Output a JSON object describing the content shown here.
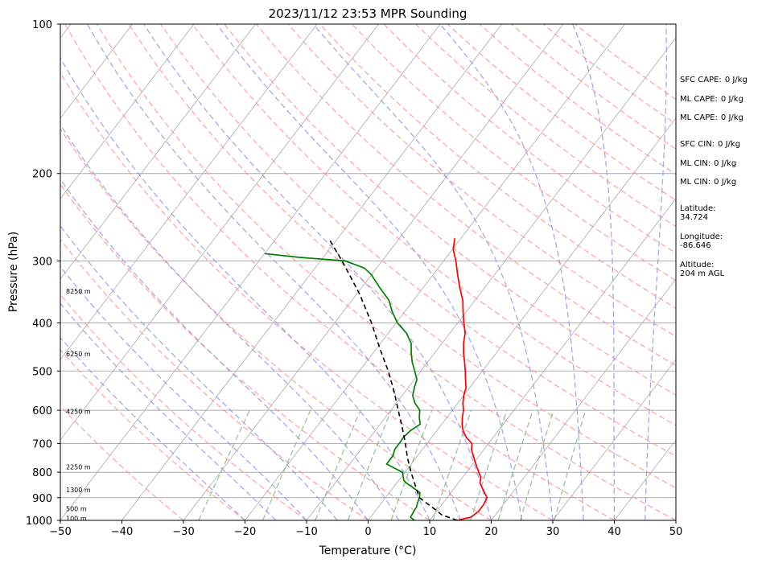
{
  "chart_data": {
    "type": "line",
    "title": "2023/11/12 23:53 MPR Sounding",
    "xlabel": "Temperature (°C)",
    "ylabel": "Pressure (hPa)",
    "xlim": [
      -50,
      50
    ],
    "ylim": [
      1000,
      100
    ],
    "y_scale": "log",
    "skew": "skew-T",
    "grid": true,
    "x_ticks": [
      -50,
      -40,
      -30,
      -20,
      -10,
      0,
      10,
      20,
      30,
      40,
      50
    ],
    "y_ticks": [
      1000,
      900,
      800,
      700,
      600,
      500,
      400,
      300,
      200,
      100
    ],
    "colors": {
      "temperature": "#ff0000",
      "dewpoint": "#008000",
      "parcel": "#000000",
      "dry_adiabats": "#ff9999",
      "moist_adiabats": "#9999ee",
      "mixing_ratio": "#88bb88",
      "isotherms": "#aaaaaa"
    },
    "series": [
      {
        "key": "temperature",
        "points": [
          [
            1000,
            14.5
          ],
          [
            985,
            16.3
          ],
          [
            960,
            16.8
          ],
          [
            930,
            16.8
          ],
          [
            900,
            16.5
          ],
          [
            880,
            15.5
          ],
          [
            860,
            14.5
          ],
          [
            840,
            13.5
          ],
          [
            820,
            13.0
          ],
          [
            800,
            12.0
          ],
          [
            780,
            11.0
          ],
          [
            760,
            10.0
          ],
          [
            740,
            9.0
          ],
          [
            720,
            8.0
          ],
          [
            700,
            7.3
          ],
          [
            680,
            5.6
          ],
          [
            660,
            4.3
          ],
          [
            640,
            3.3
          ],
          [
            620,
            2.5
          ],
          [
            600,
            1.8
          ],
          [
            580,
            0.8
          ],
          [
            560,
            0.0
          ],
          [
            540,
            -0.6
          ],
          [
            520,
            -1.7
          ],
          [
            500,
            -2.8
          ],
          [
            480,
            -4.0
          ],
          [
            460,
            -5.3
          ],
          [
            440,
            -6.5
          ],
          [
            420,
            -7.5
          ],
          [
            400,
            -9.0
          ],
          [
            380,
            -10.5
          ],
          [
            360,
            -12.0
          ],
          [
            340,
            -14.0
          ],
          [
            320,
            -16.0
          ],
          [
            300,
            -18.0
          ],
          [
            285,
            -19.8
          ],
          [
            270,
            -21.0
          ]
        ]
      },
      {
        "key": "dewpoint",
        "points": [
          [
            1000,
            7.5
          ],
          [
            985,
            6.5
          ],
          [
            960,
            6.3
          ],
          [
            940,
            6.2
          ],
          [
            920,
            5.8
          ],
          [
            900,
            5.5
          ],
          [
            880,
            5.0
          ],
          [
            860,
            3.3
          ],
          [
            840,
            1.5
          ],
          [
            830,
            0.8
          ],
          [
            800,
            -0.4
          ],
          [
            770,
            -4.0
          ],
          [
            740,
            -4.0
          ],
          [
            720,
            -4.5
          ],
          [
            700,
            -4.5
          ],
          [
            680,
            -4.6
          ],
          [
            660,
            -4.3
          ],
          [
            640,
            -3.5
          ],
          [
            620,
            -4.5
          ],
          [
            600,
            -5.3
          ],
          [
            580,
            -7.0
          ],
          [
            560,
            -8.3
          ],
          [
            540,
            -9.0
          ],
          [
            520,
            -9.6
          ],
          [
            500,
            -11.0
          ],
          [
            480,
            -12.5
          ],
          [
            460,
            -13.8
          ],
          [
            440,
            -15.0
          ],
          [
            420,
            -17.0
          ],
          [
            400,
            -19.8
          ],
          [
            380,
            -22.0
          ],
          [
            360,
            -24.0
          ],
          [
            340,
            -27.0
          ],
          [
            320,
            -30.0
          ],
          [
            310,
            -32.0
          ],
          [
            300,
            -36.0
          ],
          [
            295,
            -44.0
          ],
          [
            290,
            -50.0
          ]
        ]
      },
      {
        "key": "parcel",
        "points": [
          [
            1000,
            14.5
          ],
          [
            975,
            11.3
          ],
          [
            950,
            9.5
          ],
          [
            925,
            7.5
          ],
          [
            900,
            5.5
          ],
          [
            850,
            3.3
          ],
          [
            800,
            1.0
          ],
          [
            750,
            -1.3
          ],
          [
            700,
            -3.5
          ],
          [
            650,
            -6.0
          ],
          [
            600,
            -8.8
          ],
          [
            550,
            -11.8
          ],
          [
            500,
            -15.3
          ],
          [
            450,
            -19.5
          ],
          [
            400,
            -24.0
          ],
          [
            350,
            -29.5
          ],
          [
            300,
            -36.5
          ],
          [
            270,
            -41.5
          ]
        ]
      }
    ],
    "height_labels": [
      {
        "text": "100 m",
        "p": 990
      },
      {
        "text": "500 m",
        "p": 948
      },
      {
        "text": "1300 m",
        "p": 868
      },
      {
        "text": "2250 m",
        "p": 780
      },
      {
        "text": "4250 m",
        "p": 603
      },
      {
        "text": "6250 m",
        "p": 462
      },
      {
        "text": "8250 m",
        "p": 345
      }
    ],
    "side_panel": [
      {
        "label": "SFC CAPE:",
        "value": "0 J/kg"
      },
      {
        "label": "ML CAPE:",
        "value": "0 J/kg"
      },
      {
        "label": "ML CAPE:",
        "value": "0 J/kg"
      },
      {
        "label": "SFC CIN:",
        "value": "0 J/kg"
      },
      {
        "label": "ML CIN:",
        "value": "0 J/kg"
      },
      {
        "label": "ML CIN:",
        "value": "0 J/kg"
      },
      {
        "label": "Latitude:",
        "value": "34.724"
      },
      {
        "label": "Longitude:",
        "value": "-86.646"
      },
      {
        "label": "Altitude:",
        "value": "204 m AGL"
      }
    ]
  }
}
